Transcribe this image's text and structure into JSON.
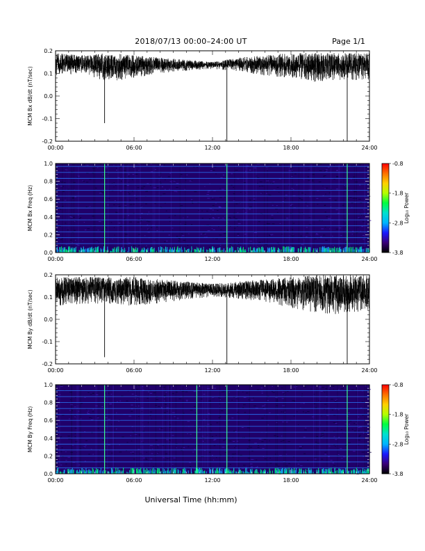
{
  "header": {
    "title": "2018/07/13  00:00–24:00 UT",
    "page": "Page 1/1"
  },
  "x_axis_title": "Universal Time (hh:mm)",
  "colors": {
    "trace": "#000000",
    "spectrogram_background": "#20006a",
    "colormap": [
      "#000000",
      "#3a0078",
      "#1a1aff",
      "#00b4ff",
      "#00e0d0",
      "#00ff40",
      "#b4ff00",
      "#ffd000",
      "#ff7000",
      "#ff0000"
    ]
  },
  "chart_data": [
    {
      "type": "line",
      "ylabel": "MCM Bx dB/dt (nT/sec)",
      "xlim": [
        0,
        24
      ],
      "ylim": [
        -0.2,
        0.2
      ],
      "x_ticks": [
        "00:00",
        "06:00",
        "12:00",
        "18:00",
        "24:00"
      ],
      "y_ticks": [
        "-0.2",
        "-0.1",
        "0.0",
        "0.1",
        "0.2"
      ],
      "y_tick_values": [
        -0.2,
        -0.1,
        0.0,
        0.1,
        0.2
      ],
      "baseline": 0.14,
      "envelope": [
        {
          "x": 0,
          "lo": 0.09,
          "hi": 0.19
        },
        {
          "x": 2,
          "lo": 0.1,
          "hi": 0.18
        },
        {
          "x": 4,
          "lo": 0.06,
          "hi": 0.19
        },
        {
          "x": 6,
          "lo": 0.08,
          "hi": 0.18
        },
        {
          "x": 8,
          "lo": 0.1,
          "hi": 0.17
        },
        {
          "x": 10,
          "lo": 0.11,
          "hi": 0.16
        },
        {
          "x": 12,
          "lo": 0.12,
          "hi": 0.15
        },
        {
          "x": 14,
          "lo": 0.11,
          "hi": 0.17
        },
        {
          "x": 16,
          "lo": 0.09,
          "hi": 0.18
        },
        {
          "x": 18,
          "lo": 0.08,
          "hi": 0.19
        },
        {
          "x": 20,
          "lo": 0.06,
          "hi": 0.19
        },
        {
          "x": 22,
          "lo": 0.07,
          "hi": 0.19
        },
        {
          "x": 24,
          "lo": 0.07,
          "hi": 0.19
        }
      ],
      "spikes": [
        {
          "x": 3.75,
          "y": -0.12
        },
        {
          "x": 13.1,
          "y": -0.2
        },
        {
          "x": 22.3,
          "y": -0.2
        }
      ]
    },
    {
      "type": "heatmap",
      "ylabel": "MCM Bx Freq (Hz)",
      "xlim": [
        0,
        24
      ],
      "ylim": [
        0,
        1
      ],
      "x_ticks": [
        "00:00",
        "06:00",
        "12:00",
        "18:00",
        "24:00"
      ],
      "y_ticks": [
        "0.0",
        "0.2",
        "0.4",
        "0.6",
        "0.8",
        "1.0"
      ],
      "y_tick_values": [
        0,
        0.2,
        0.4,
        0.6,
        0.8,
        1.0
      ],
      "colorbar": {
        "label": "Log₁₀ Power",
        "range": [
          -3.8,
          -0.8
        ],
        "ticks": [
          "-0.8",
          "-1.8",
          "-2.8",
          "-3.8"
        ],
        "tick_values": [
          -0.8,
          -1.8,
          -2.8,
          -3.8
        ]
      },
      "harmonic_lines_hz": [
        0.1,
        0.167,
        0.233,
        0.3,
        0.367,
        0.433,
        0.5,
        0.567,
        0.633,
        0.7,
        0.767,
        0.833,
        0.9,
        0.967
      ],
      "spike_times": [
        3.75,
        13.1,
        22.3
      ]
    },
    {
      "type": "line",
      "ylabel": "MCM By dB/dt (nT/sec)",
      "xlim": [
        0,
        24
      ],
      "ylim": [
        -0.2,
        0.2
      ],
      "x_ticks": [
        "00:00",
        "06:00",
        "12:00",
        "18:00",
        "24:00"
      ],
      "y_ticks": [
        "-0.2",
        "-0.1",
        "0.0",
        "0.1",
        "0.2"
      ],
      "y_tick_values": [
        -0.2,
        -0.1,
        0.0,
        0.1,
        0.2
      ],
      "baseline": 0.13,
      "envelope": [
        {
          "x": 0,
          "lo": 0.06,
          "hi": 0.19
        },
        {
          "x": 2,
          "lo": 0.07,
          "hi": 0.19
        },
        {
          "x": 4,
          "lo": 0.07,
          "hi": 0.19
        },
        {
          "x": 6,
          "lo": 0.06,
          "hi": 0.19
        },
        {
          "x": 8,
          "lo": 0.07,
          "hi": 0.18
        },
        {
          "x": 10,
          "lo": 0.09,
          "hi": 0.17
        },
        {
          "x": 12,
          "lo": 0.1,
          "hi": 0.16
        },
        {
          "x": 14,
          "lo": 0.09,
          "hi": 0.17
        },
        {
          "x": 16,
          "lo": 0.08,
          "hi": 0.18
        },
        {
          "x": 18,
          "lo": 0.05,
          "hi": 0.19
        },
        {
          "x": 20,
          "lo": 0.03,
          "hi": 0.2
        },
        {
          "x": 22,
          "lo": 0.02,
          "hi": 0.2
        },
        {
          "x": 24,
          "lo": 0.04,
          "hi": 0.2
        }
      ],
      "spikes": [
        {
          "x": 3.75,
          "y": -0.17
        },
        {
          "x": 13.1,
          "y": -0.2
        },
        {
          "x": 22.3,
          "y": -0.2
        }
      ]
    },
    {
      "type": "heatmap",
      "ylabel": "MCM By Freq (Hz)",
      "xlim": [
        0,
        24
      ],
      "ylim": [
        0,
        1
      ],
      "x_ticks": [
        "00:00",
        "06:00",
        "12:00",
        "18:00",
        "24:00"
      ],
      "y_ticks": [
        "0.0",
        "0.2",
        "0.4",
        "0.6",
        "0.8",
        "1.0"
      ],
      "y_tick_values": [
        0,
        0.2,
        0.4,
        0.6,
        0.8,
        1.0
      ],
      "colorbar": {
        "label": "Log₁₀ Power",
        "range": [
          -3.8,
          -0.8
        ],
        "ticks": [
          "-0.8",
          "-1.8",
          "-2.8",
          "-3.8"
        ],
        "tick_values": [
          -0.8,
          -1.8,
          -2.8,
          -3.8
        ]
      },
      "harmonic_lines_hz": [
        0.067,
        0.133,
        0.2,
        0.267,
        0.333,
        0.4,
        0.467,
        0.533,
        0.6,
        0.667,
        0.733,
        0.8,
        0.867,
        0.933,
        1.0
      ],
      "spike_times": [
        3.75,
        10.8,
        13.1,
        22.3
      ]
    }
  ]
}
